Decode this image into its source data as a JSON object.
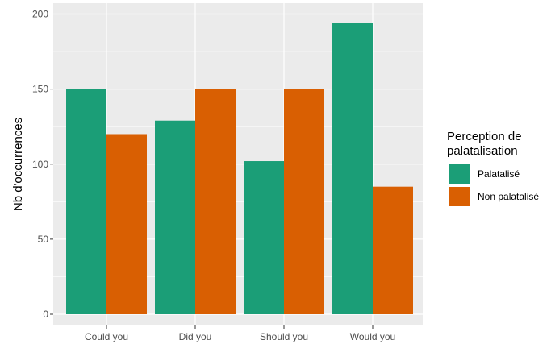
{
  "chart_data": {
    "type": "bar",
    "categories": [
      "Could you",
      "Did you",
      "Should you",
      "Would you"
    ],
    "series": [
      {
        "name": "Palatalisé",
        "values": [
          150,
          129,
          102,
          194
        ],
        "color": "#1b9e77"
      },
      {
        "name": "Non palatalisé",
        "values": [
          120,
          150,
          150,
          85
        ],
        "color": "#d95f02"
      }
    ],
    "xlabel": "",
    "ylabel": "Nb d'occurrences",
    "ylim": [
      0,
      200
    ],
    "yticks": [
      0,
      50,
      100,
      150,
      200
    ],
    "legend_title": "Perception de palatalisation",
    "legend_position": "right",
    "grid": true,
    "panel_background": "#ebebeb",
    "grid_color": "#ffffff"
  }
}
